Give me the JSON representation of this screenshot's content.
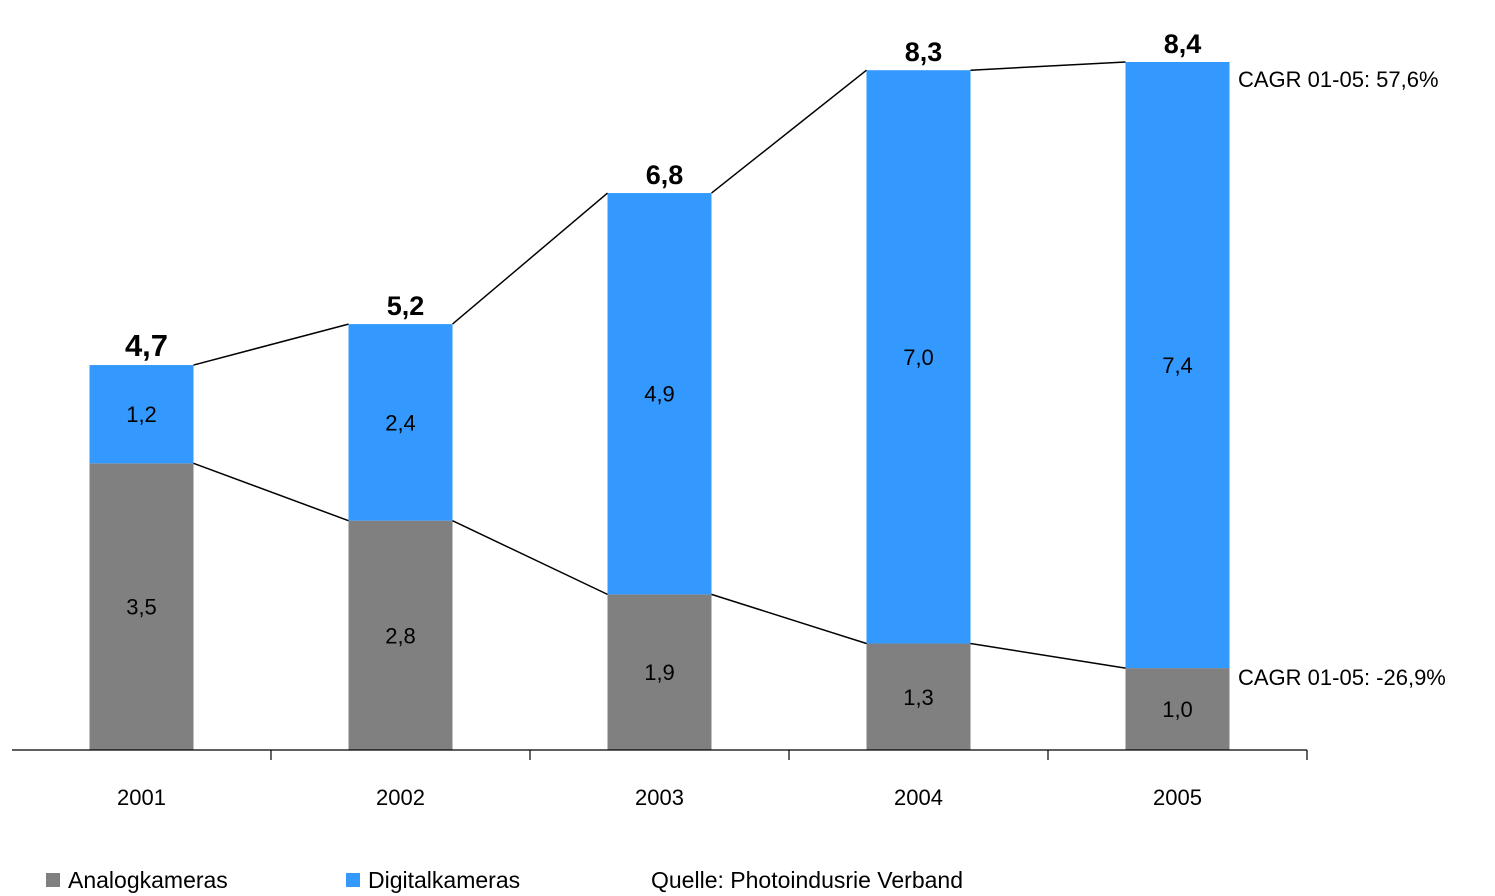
{
  "chart_data": {
    "type": "bar",
    "stacked": true,
    "categories": [
      "2001",
      "2002",
      "2003",
      "2004",
      "2005"
    ],
    "series": [
      {
        "name": "Analogkameras",
        "color": "#808080",
        "values": [
          3.5,
          2.8,
          1.9,
          1.3,
          1.0
        ],
        "labels": [
          "3,5",
          "2,8",
          "1,9",
          "1,3",
          "1,0"
        ]
      },
      {
        "name": "Digitalkameras",
        "color": "#3399ff",
        "values": [
          1.2,
          2.4,
          4.9,
          7.0,
          7.4
        ],
        "labels": [
          "1,2",
          "2,4",
          "4,9",
          "7,0",
          "7,4"
        ]
      }
    ],
    "totals": [
      4.7,
      5.2,
      6.8,
      8.3,
      8.4
    ],
    "total_labels": [
      "4,7",
      "5,2",
      "6,8",
      "8,3",
      "8,4"
    ],
    "annotations": [
      "CAGR 01-05: 57,6%",
      "CAGR 01-05: -26,9%"
    ],
    "ylim": [
      0,
      8.4
    ],
    "grid": false,
    "legend_position": "bottom-left"
  },
  "source": "Quelle: Photoindusrie Verband"
}
